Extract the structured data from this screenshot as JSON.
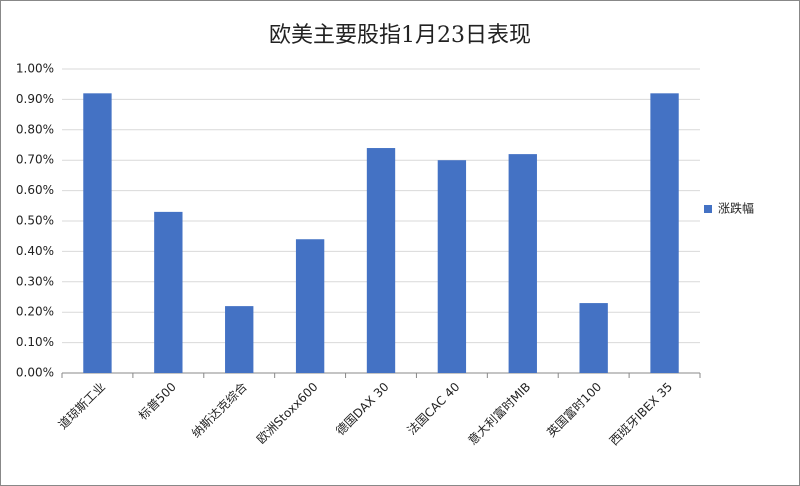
{
  "chart_data": {
    "type": "bar",
    "title": "欧美主要股指1月23日表现",
    "categories": [
      "道琼斯工业",
      "标普500",
      "纳斯达克综合",
      "欧洲Stoxx600",
      "德国DAX 30",
      "法国CAC 40",
      "意大利富时MIB",
      "英国富时100",
      "西班牙IBEX 35"
    ],
    "series": [
      {
        "name": "涨跌幅",
        "color": "#4472c4",
        "values": [
          0.92,
          0.53,
          0.22,
          0.44,
          0.74,
          0.7,
          0.72,
          0.23,
          0.92
        ]
      }
    ],
    "ylim": [
      0,
      1.0
    ],
    "yticks": [
      {
        "value": 0,
        "label": "0.00%"
      },
      {
        "value": 0.1,
        "label": "0.10%"
      },
      {
        "value": 0.2,
        "label": "0.20%"
      },
      {
        "value": 0.3,
        "label": "0.30%"
      },
      {
        "value": 0.4,
        "label": "0.40%"
      },
      {
        "value": 0.5,
        "label": "0.50%"
      },
      {
        "value": 0.6,
        "label": "0.60%"
      },
      {
        "value": 0.7,
        "label": "0.70%"
      },
      {
        "value": 0.8,
        "label": "0.80%"
      },
      {
        "value": 0.9,
        "label": "0.90%"
      },
      {
        "value": 1.0,
        "label": "1.00%"
      }
    ],
    "grid": true,
    "legend": "right"
  }
}
